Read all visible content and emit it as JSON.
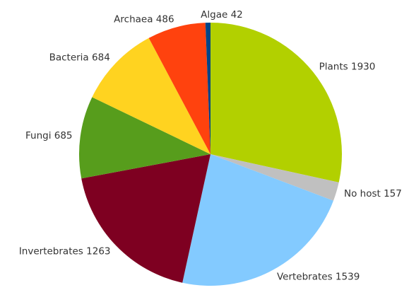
{
  "chart_data": {
    "type": "pie",
    "categories": [
      "Plants",
      "No host",
      "Vertebrates",
      "Invertebrates",
      "Fungi",
      "Bacteria",
      "Archaea",
      "Algae"
    ],
    "values": [
      1930,
      157,
      1539,
      1263,
      685,
      684,
      486,
      42
    ],
    "colors": [
      "#b2d000",
      "#c0c0c0",
      "#83caff",
      "#7e0021",
      "#579d1c",
      "#ffd320",
      "#ff420e",
      "#004586"
    ]
  }
}
